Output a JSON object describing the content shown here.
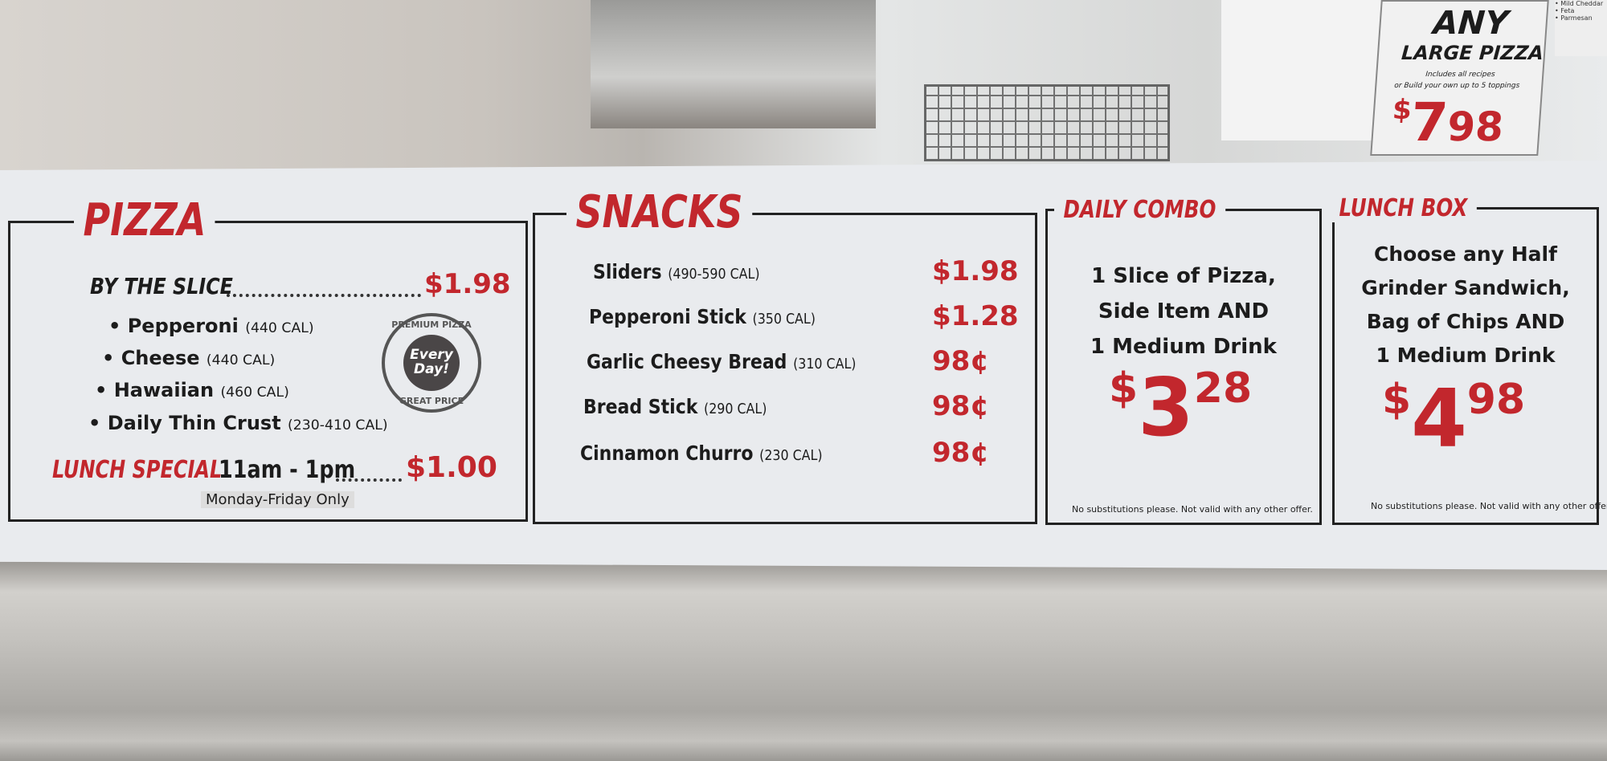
{
  "pizza": {
    "title": "PIZZA",
    "by_the_slice": "BY THE SLICE",
    "slice_price": "$1.98",
    "items": [
      {
        "name": "• Pepperoni",
        "cal": "(440 CAL)"
      },
      {
        "name": "• Cheese",
        "cal": "(440 CAL)"
      },
      {
        "name": "• Hawaiian",
        "cal": "(460 CAL)"
      },
      {
        "name": "• Daily Thin Crust",
        "cal": "(230-410 CAL)"
      }
    ],
    "seal": {
      "top": "PREMIUM PIZZA",
      "center": "Every Day!",
      "bottom": "GREAT PRICE"
    },
    "lunch_special_label": "LUNCH SPECIAL",
    "lunch_special_time": "11am - 1pm",
    "lunch_special_price": "$1.00",
    "lunch_special_note": "Monday-Friday Only"
  },
  "snacks": {
    "title": "SNACKS",
    "items": [
      {
        "name": "Sliders",
        "cal": "(490-590 CAL)",
        "price": "$1.98"
      },
      {
        "name": "Pepperoni Stick",
        "cal": "(350 CAL)",
        "price": "$1.28"
      },
      {
        "name": "Garlic Cheesy Bread",
        "cal": "(310 CAL)",
        "price": "98¢"
      },
      {
        "name": "Bread Stick",
        "cal": "(290 CAL)",
        "price": "98¢"
      },
      {
        "name": "Cinnamon Churro",
        "cal": "(230 CAL)",
        "price": "98¢"
      }
    ]
  },
  "daily_combo": {
    "title": "DAILY COMBO",
    "lines": [
      "1 Slice of Pizza,",
      "Side Item AND",
      "1 Medium Drink"
    ],
    "price_dollar": "$",
    "price_main": "3",
    "price_cents": "28",
    "fine_print": "No substitutions please. Not valid with any other offer."
  },
  "lunch_box": {
    "title": "LUNCH BOX",
    "lines": [
      "Choose any Half",
      "Grinder Sandwich,",
      "Bag of Chips AND",
      "1 Medium Drink"
    ],
    "price_dollar": "$",
    "price_main": "4",
    "price_cents": "98",
    "fine_print": "No substitutions please. Not valid with any other offer."
  },
  "large_pizza_sign": {
    "line1": "ANY",
    "line2": "LARGE PIZZA",
    "line3": "Includes all recipes",
    "line4": "or Build your own up to 5 toppings",
    "price_dollar": "$",
    "price_main": "7",
    "price_cents": "98"
  },
  "ingredient_card": [
    "• Mild Cheddar",
    "• Feta",
    "• Parmesan"
  ],
  "colors": {
    "accent_red": "#c2272d",
    "text_dark": "#1c1c1c",
    "board": "#e9ebee"
  }
}
